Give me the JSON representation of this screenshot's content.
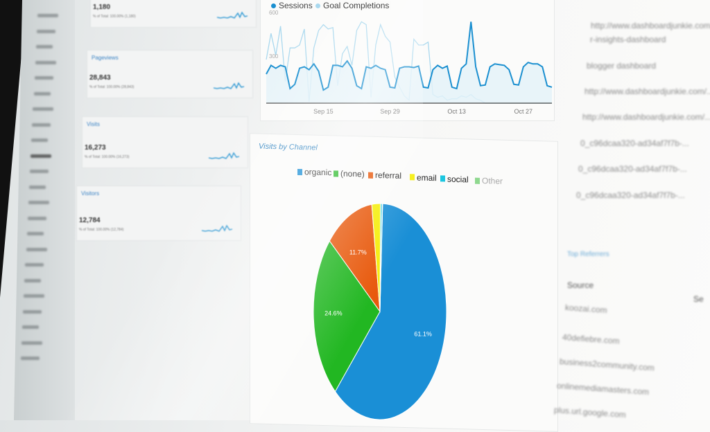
{
  "metric_cards": [
    {
      "label": "",
      "value": "1,180",
      "sub": "% of Total: 100.00% (1,180)"
    },
    {
      "label": "Pageviews",
      "value": "28,843",
      "sub": "% of Total: 100.00% (28,843)"
    },
    {
      "label": "Visits",
      "value": "16,273",
      "sub": "% of Total: 100.00% (16,273)"
    },
    {
      "label": "Visitors",
      "value": "12,784",
      "sub": "% of Total: 100.00% (12,784)"
    }
  ],
  "line_chart": {
    "chart_data": {
      "type": "line",
      "legend": [
        "Sessions",
        "Goal Completions"
      ],
      "yticks": [
        "300",
        "600"
      ],
      "ylim": [
        0,
        600
      ],
      "xticks": [
        "Sep 15",
        "Sep 29",
        "Oct 13",
        "Oct 27"
      ],
      "colors": {
        "Sessions": "#1a8fd0",
        "Goal Completions": "#a9d8ee"
      },
      "series": [
        {
          "name": "Sessions",
          "values": [
            200,
            260,
            240,
            260,
            250,
            100,
            130,
            240,
            250,
            230,
            270,
            220,
            90,
            110,
            260,
            260,
            250,
            290,
            240,
            120,
            100,
            250,
            240,
            260,
            240,
            230,
            110,
            105,
            240,
            250,
            250,
            245,
            255,
            110,
            105,
            230,
            260,
            240,
            255,
            110,
            100,
            240,
            270,
            560,
            250,
            120,
            125,
            250,
            270,
            265,
            260,
            230,
            130,
            125,
            250,
            280,
            270,
            270,
            250,
            120,
            110
          ]
        },
        {
          "name": "Goal Completions",
          "values": [
            300,
            480,
            330,
            530,
            150,
            380,
            380,
            400,
            510,
            10,
            380,
            500,
            540,
            510,
            520,
            120,
            340,
            390,
            260,
            500,
            560,
            540,
            40,
            400,
            540,
            460,
            420,
            180,
            110,
            50,
            20,
            440,
            400,
            400,
            420,
            60,
            40,
            50,
            20,
            30,
            30,
            50,
            40,
            60,
            30,
            20,
            0,
            0,
            0,
            0,
            0,
            0,
            0,
            0,
            0,
            0,
            0,
            0,
            0,
            0,
            0
          ]
        }
      ]
    }
  },
  "pie": {
    "title": "Visits by Channel",
    "chart_data": {
      "type": "pie",
      "categories": [
        "organic",
        "(none)",
        "referral",
        "email",
        "social",
        "Other"
      ],
      "values": [
        61.1,
        24.6,
        11.7,
        2.1,
        0.4,
        0.1
      ],
      "labels": [
        "61.1%",
        "24.6%",
        "11.7%",
        "",
        "",
        ""
      ],
      "colors": [
        "#1a8fd6",
        "#22b722",
        "#e8590c",
        "#f5ee0a",
        "#1cc6e0",
        "#8fd88f"
      ],
      "legend_position": "top"
    }
  },
  "right_panel": {
    "pages": [
      "http://www.dashboardjunkie.com/...",
      "r-insights-dashboard",
      "blogger dashboard",
      "http://www.dashboardjunkie.com/...",
      "http://www.dashboardjunkie.com/...",
      "0_c96dcaa320-ad34af7f7b-...",
      "0_c96dcaa320-ad34af7f7b-...",
      "0_c96dcaa320-ad34af7f7b-..."
    ],
    "referrers_title": "Top Referrers",
    "source_header": "Source",
    "sessions_header": "Se",
    "sources": [
      "koozai.com",
      "40defiebre.com",
      "business2community.com",
      "onlinemediamasters.com",
      "plus.url.google.com"
    ]
  }
}
